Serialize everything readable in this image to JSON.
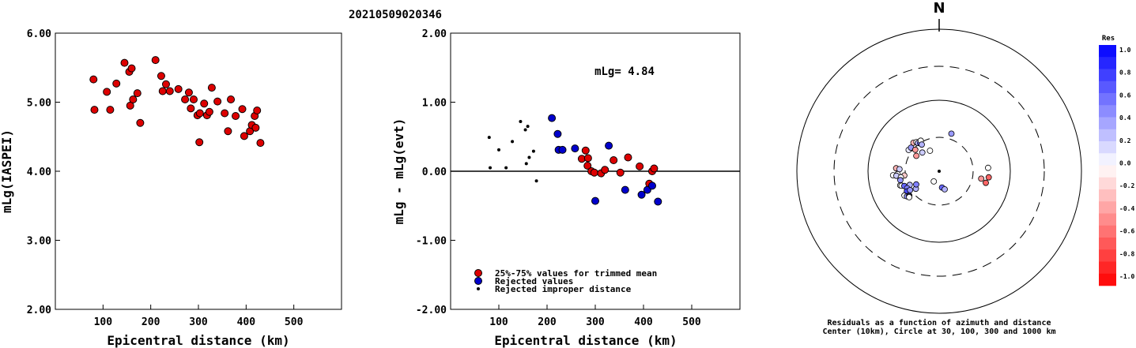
{
  "title": "20210509020346",
  "chart_data": [
    {
      "type": "scatter",
      "xlabel": "Epicentral distance (km)",
      "ylabel": "mLg(IASPEI)",
      "xlim": [
        0,
        600
      ],
      "ylim": [
        2.0,
        6.0
      ],
      "xticks": [
        100,
        200,
        300,
        400,
        500
      ],
      "yticks": [
        2.0,
        3.0,
        4.0,
        5.0,
        6.0
      ],
      "ytick_labels": [
        "2.00",
        "3.00",
        "4.00",
        "5.00",
        "6.00"
      ],
      "series": [
        {
          "color": "#dd0000",
          "points": [
            [
              80,
              5.33
            ],
            [
              82,
              4.89
            ],
            [
              108,
              5.15
            ],
            [
              115,
              4.89
            ],
            [
              128,
              5.27
            ],
            [
              145,
              5.57
            ],
            [
              155,
              5.44
            ],
            [
              157,
              4.95
            ],
            [
              160,
              5.49
            ],
            [
              163,
              5.04
            ],
            [
              172,
              5.13
            ],
            [
              178,
              4.7
            ],
            [
              210,
              5.61
            ],
            [
              222,
              5.38
            ],
            [
              225,
              5.16
            ],
            [
              232,
              5.26
            ],
            [
              240,
              5.16
            ],
            [
              258,
              5.19
            ],
            [
              272,
              5.04
            ],
            [
              280,
              5.14
            ],
            [
              284,
              4.91
            ],
            [
              290,
              5.04
            ],
            [
              298,
              4.81
            ],
            [
              302,
              4.42
            ],
            [
              303,
              4.84
            ],
            [
              312,
              4.98
            ],
            [
              318,
              4.81
            ],
            [
              323,
              4.86
            ],
            [
              328,
              5.21
            ],
            [
              340,
              5.01
            ],
            [
              355,
              4.84
            ],
            [
              362,
              4.58
            ],
            [
              368,
              5.04
            ],
            [
              378,
              4.8
            ],
            [
              392,
              4.9
            ],
            [
              396,
              4.51
            ],
            [
              408,
              4.58
            ],
            [
              412,
              4.67
            ],
            [
              418,
              4.8
            ],
            [
              420,
              4.63
            ],
            [
              423,
              4.88
            ],
            [
              430,
              4.41
            ]
          ]
        }
      ]
    },
    {
      "type": "scatter",
      "xlabel": "Epicentral distance (km)",
      "ylabel": "mLg - mLg(evt)",
      "xlim": [
        0,
        600
      ],
      "ylim": [
        -2.0,
        2.0
      ],
      "xticks": [
        100,
        200,
        300,
        400,
        500
      ],
      "yticks": [
        -2.0,
        -1.0,
        0.0,
        1.0,
        2.0
      ],
      "ytick_labels": [
        "-2.00",
        "-1.00",
        "0.00",
        "1.00",
        "2.00"
      ],
      "reference_line": 0.0,
      "annotation": "mLg= 4.84",
      "series": [
        {
          "name": "25%-75% values for trimmed mean",
          "color": "#dd0000",
          "points": [
            [
              272,
              0.18
            ],
            [
              280,
              0.3
            ],
            [
              284,
              0.08
            ],
            [
              285,
              0.19
            ],
            [
              292,
              0.0
            ],
            [
              298,
              -0.02
            ],
            [
              312,
              -0.03
            ],
            [
              320,
              0.02
            ],
            [
              338,
              0.16
            ],
            [
              352,
              -0.02
            ],
            [
              368,
              0.2
            ],
            [
              392,
              0.07
            ],
            [
              412,
              -0.18
            ],
            [
              418,
              0.0
            ],
            [
              422,
              0.04
            ]
          ]
        },
        {
          "name": "Rejected values",
          "color": "#0000cc",
          "points": [
            [
              210,
              0.77
            ],
            [
              222,
              0.54
            ],
            [
              224,
              0.31
            ],
            [
              232,
              0.31
            ],
            [
              258,
              0.33
            ],
            [
              300,
              -0.43
            ],
            [
              328,
              0.37
            ],
            [
              362,
              -0.27
            ],
            [
              396,
              -0.34
            ],
            [
              408,
              -0.27
            ],
            [
              418,
              -0.21
            ],
            [
              430,
              -0.44
            ]
          ]
        },
        {
          "name": "Rejected improper distance",
          "color": "#000000",
          "points": [
            [
              80,
              0.49
            ],
            [
              82,
              0.05
            ],
            [
              100,
              0.31
            ],
            [
              115,
              0.05
            ],
            [
              128,
              0.43
            ],
            [
              145,
              0.72
            ],
            [
              155,
              0.6
            ],
            [
              157,
              0.11
            ],
            [
              160,
              0.65
            ],
            [
              163,
              0.2
            ],
            [
              172,
              0.29
            ],
            [
              178,
              -0.14
            ]
          ]
        }
      ]
    },
    {
      "type": "scatter",
      "north_label": "N",
      "caption_line1": "Residuals as a function of azimuth and distance",
      "caption_line2": "Center (10km), Circle at 30, 100, 300 and 1000 km",
      "colorbar_title": "Res",
      "colorbar_ticks": [
        "1.0",
        "0.8",
        "0.6",
        "0.4",
        "0.2",
        "0.0",
        "-0.2",
        "-0.4",
        "-0.6",
        "-0.8",
        "-1.0"
      ],
      "colorbar_range": [
        -1.0,
        1.0
      ],
      "residual_points": [
        {
          "az": 18,
          "dist": 278,
          "res": 0.4
        },
        {
          "az": 305,
          "dist": 262,
          "res": 0.1
        },
        {
          "az": 310,
          "dist": 258,
          "res": 0.4
        },
        {
          "az": 318,
          "dist": 270,
          "res": -0.3
        },
        {
          "az": 322,
          "dist": 260,
          "res": 0.0
        },
        {
          "az": 323,
          "dist": 248,
          "res": 0.3
        },
        {
          "az": 326,
          "dist": 238,
          "res": 0.6
        },
        {
          "az": 329,
          "dist": 251,
          "res": 0.0
        },
        {
          "az": 327,
          "dist": 224,
          "res": 0.3
        },
        {
          "az": 336,
          "dist": 158,
          "res": 0.0
        },
        {
          "az": 312,
          "dist": 226,
          "res": -0.4
        },
        {
          "az": 304,
          "dist": 194,
          "res": -0.4
        },
        {
          "az": 318,
          "dist": 177,
          "res": 0.2
        },
        {
          "az": 274,
          "dist": 303,
          "res": -0.3
        },
        {
          "az": 273,
          "dist": 279,
          "res": 0.2
        },
        {
          "az": 266,
          "dist": 293,
          "res": 0.0
        },
        {
          "az": 265,
          "dist": 325,
          "res": 0.0
        },
        {
          "az": 264,
          "dist": 302,
          "res": 0.2
        },
        {
          "az": 263,
          "dist": 247,
          "res": -0.2
        },
        {
          "az": 261,
          "dist": 272,
          "res": 0.0
        },
        {
          "az": 257,
          "dist": 280,
          "res": 0.4
        },
        {
          "az": 250,
          "dist": 291,
          "res": 0.0
        },
        {
          "az": 249,
          "dist": 283,
          "res": 0.0
        },
        {
          "az": 247,
          "dist": 266,
          "res": 0.6
        },
        {
          "az": 245,
          "dist": 228,
          "res": 0.3
        },
        {
          "az": 242,
          "dist": 255,
          "res": 0.5
        },
        {
          "az": 238,
          "dist": 267,
          "res": 0.7
        },
        {
          "az": 237,
          "dist": 244,
          "res": 0.4
        },
        {
          "az": 235,
          "dist": 298,
          "res": 0.0
        },
        {
          "az": 232,
          "dist": 287,
          "res": 0.4
        },
        {
          "az": 231,
          "dist": 270,
          "res": 0.5
        },
        {
          "az": 230,
          "dist": 275,
          "res": 0.3
        },
        {
          "az": 229,
          "dist": 279,
          "res": 0.0
        },
        {
          "az": 233,
          "dist": 205,
          "res": 0.3
        },
        {
          "az": 240,
          "dist": 186,
          "res": 0.5
        },
        {
          "az": 208,
          "dist": 81,
          "res": 0.0
        },
        {
          "az": 170,
          "dist": 116,
          "res": 0.6
        },
        {
          "az": 163,
          "dist": 133,
          "res": 0.3
        },
        {
          "az": 100,
          "dist": 300,
          "res": -0.4
        },
        {
          "az": 104,
          "dist": 338,
          "res": -0.6
        },
        {
          "az": 97,
          "dist": 351,
          "res": -0.6
        },
        {
          "az": 86,
          "dist": 345,
          "res": 0.0
        }
      ]
    }
  ]
}
